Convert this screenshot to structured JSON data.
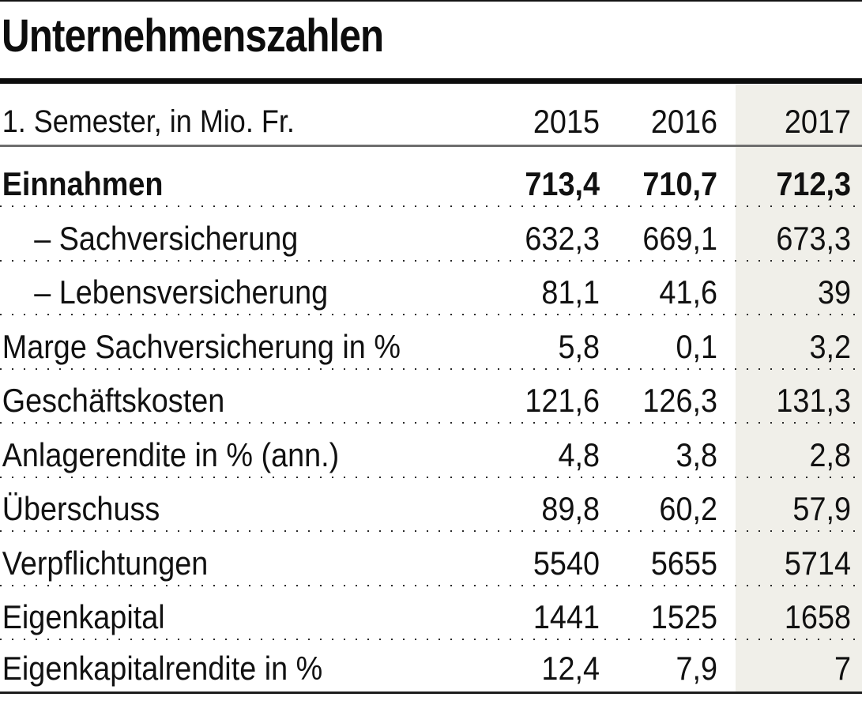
{
  "title": "Unternehmenszahlen",
  "colors": {
    "highlight_column": "#f0efe9",
    "text": "#111111"
  },
  "chart_data": {
    "type": "table",
    "title": "Unternehmenszahlen",
    "unit_label": "1. Semester, in Mio. Fr.",
    "columns": [
      "2015",
      "2016",
      "2017"
    ],
    "highlighted_column": "2017",
    "rows": [
      {
        "label": "Einnahmen",
        "values": [
          "713,4",
          "710,7",
          "712,3"
        ]
      },
      {
        "label": "– Sachversicherung",
        "values": [
          "632,3",
          "669,1",
          "673,3"
        ]
      },
      {
        "label": "– Lebensversicherung",
        "values": [
          "81,1",
          "41,6",
          "39"
        ]
      },
      {
        "label": "Marge Sachversicherung in %",
        "values": [
          "5,8",
          "0,1",
          "3,2"
        ]
      },
      {
        "label": "Geschäftskosten",
        "values": [
          "121,6",
          "126,3",
          "131,3"
        ]
      },
      {
        "label": "Anlagerendite in % (ann.)",
        "values": [
          "4,8",
          "3,8",
          "2,8"
        ]
      },
      {
        "label": "Überschuss",
        "values": [
          "89,8",
          "60,2",
          "57,9"
        ]
      },
      {
        "label": "Verpflichtungen",
        "values": [
          "5540",
          "5655",
          "5714"
        ]
      },
      {
        "label": "Eigenkapital",
        "values": [
          "1441",
          "1525",
          "1658"
        ]
      },
      {
        "label": "Eigenkapitalrendite in %",
        "values": [
          "12,4",
          "7,9",
          "7"
        ]
      }
    ]
  }
}
